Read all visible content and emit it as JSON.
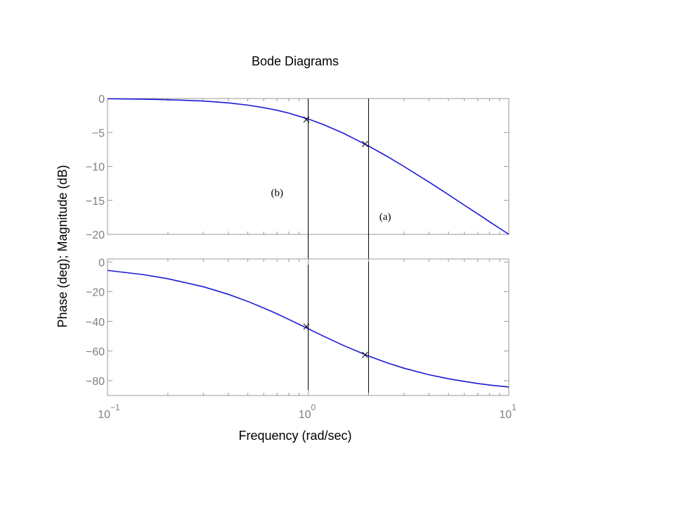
{
  "chart_data": [
    {
      "type": "line",
      "title": "Bode Diagrams",
      "ylabel": "Phase (deg); Magnitude (dB)",
      "log_x": true,
      "xlim": [
        0.1,
        10
      ],
      "xticks": [
        0.1,
        1,
        10
      ],
      "ylim": [
        -20,
        0
      ],
      "yticks": [
        0,
        {
          "value": -5,
          "label": "−5"
        },
        {
          "value": -10,
          "label": "−10"
        },
        {
          "value": -15,
          "label": "−15"
        },
        {
          "value": -20,
          "label": "−20"
        }
      ],
      "x": [
        0.1,
        0.15,
        0.2,
        0.3,
        0.4,
        0.5,
        0.6,
        0.7,
        0.8,
        1,
        1.2,
        1.5,
        2,
        2.5,
        3,
        4,
        5,
        6,
        7,
        8,
        10
      ],
      "series": [
        {
          "color": "#1a1ad8",
          "values": [
            -0.04,
            -0.1,
            -0.17,
            -0.37,
            -0.64,
            -0.97,
            -1.34,
            -1.73,
            -2.15,
            -3.01,
            -3.87,
            -5.12,
            -6.99,
            -8.6,
            -10.0,
            -12.3,
            -14.15,
            -15.7,
            -16.99,
            -18.13,
            -20.0
          ]
        }
      ],
      "markers": {
        "x": [
          0.98,
          1.92
        ],
        "values": [
          -3.1,
          -6.7
        ]
      },
      "vlines": [
        1,
        2
      ],
      "annotations": [
        {
          "text": "(b)",
          "x": 0.7,
          "y": -14
        },
        {
          "text": "(a)",
          "x": 2.42,
          "y": -17.5
        }
      ]
    },
    {
      "type": "line",
      "xlabel": "Frequency (rad/sec)",
      "log_x": true,
      "xlim": [
        0.1,
        10
      ],
      "xticks": [
        {
          "value": 0.1,
          "label": "10",
          "exponent": "−1"
        },
        {
          "value": 1,
          "label": "10",
          "exponent": "0"
        },
        {
          "value": 10,
          "label": "10",
          "exponent": "1"
        }
      ],
      "ylim": [
        -90,
        2
      ],
      "yticks": [
        0,
        {
          "value": -20,
          "label": "−20"
        },
        {
          "value": -40,
          "label": "−40"
        },
        {
          "value": -60,
          "label": "−60"
        },
        {
          "value": -80,
          "label": "−80"
        }
      ],
      "x": [
        0.1,
        0.15,
        0.2,
        0.3,
        0.4,
        0.5,
        0.6,
        0.7,
        0.8,
        1,
        1.2,
        1.5,
        2,
        2.5,
        3,
        4,
        5,
        6,
        7,
        8,
        10
      ],
      "series": [
        {
          "color": "#1a1ad8",
          "values": [
            -5.7,
            -8.5,
            -11.3,
            -16.7,
            -21.8,
            -26.6,
            -31.0,
            -35.0,
            -38.7,
            -45,
            -50.2,
            -56.3,
            -63.4,
            -68.2,
            -71.6,
            -76.0,
            -78.7,
            -80.5,
            -81.9,
            -82.9,
            -84.3
          ]
        }
      ],
      "markers": {
        "x": [
          0.98,
          1.92
        ],
        "values": [
          -43.5,
          -62.6
        ]
      }
    }
  ]
}
